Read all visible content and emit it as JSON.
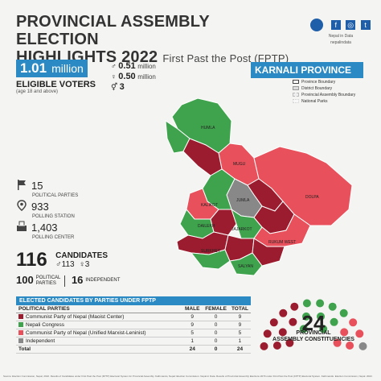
{
  "header": {
    "line1": "PROVINCIAL ASSEMBLY ELECTION",
    "line2": "HIGHLIGHTS 2022",
    "subtitle": "First Past the Post (FPTP)"
  },
  "brand": {
    "name": "Nepal in Data",
    "handle": "nepalindata"
  },
  "voters": {
    "value": "1.01",
    "unit": "million",
    "label": "ELIGIBLE VOTERS",
    "note": "(age 18 and above)",
    "male": "0.51",
    "female": "0.50",
    "other": "3",
    "male_unit": "million",
    "female_unit": "million"
  },
  "stats": [
    {
      "num": "15",
      "cap": "POLITICAL PARTIES",
      "icon": "flag-icon"
    },
    {
      "num": "933",
      "cap": "POLLING STATION",
      "icon": "location-pin-icon"
    },
    {
      "num": "1,403",
      "cap": "POLLING CENTER",
      "icon": "ballot-box-icon"
    }
  ],
  "candidates": {
    "total": "116",
    "label": "CANDIDATES",
    "male": "113",
    "female": "3",
    "parties_n": "100",
    "parties_label": "POLITICAL PARTIES",
    "indep_n": "16",
    "indep_label": "INDEPENDENT"
  },
  "province": {
    "name": "KARNALI PROVINCE",
    "legend": [
      {
        "label": "Province Boundary",
        "color": "#ffffff"
      },
      {
        "label": "District Boundary",
        "color": "#dddddd"
      },
      {
        "label": "Provincial Assembly Boundary",
        "color": "#eeeeee"
      },
      {
        "label": "National Parks",
        "color": "#f7f7f7"
      }
    ],
    "districts": [
      "HUMLA",
      "MUGU",
      "JUMLA",
      "KALIKOT",
      "DOLPA",
      "DAILEKH",
      "JAJARKOT",
      "SURKHET",
      "RUKUM WEST",
      "SALYAN"
    ]
  },
  "table": {
    "heading": "ELECTED CANDIDATES BY PARTIES UNDER FPTP",
    "cols": [
      "POLITICAL PARTIES",
      "MALE",
      "FEMALE",
      "TOTAL"
    ],
    "rows": [
      {
        "party": "Communist Party of Nepal (Maoist Center)",
        "male": "9",
        "female": "0",
        "total": "9",
        "color": "#9b1c2e"
      },
      {
        "party": "Nepali Congress",
        "male": "9",
        "female": "0",
        "total": "9",
        "color": "#3fa34d"
      },
      {
        "party": "Communist Party of Nepal (Unified Marxist-Leninist)",
        "male": "5",
        "female": "0",
        "total": "5",
        "color": "#e8505b"
      },
      {
        "party": "Independent",
        "male": "1",
        "female": "0",
        "total": "1",
        "color": "#888888"
      },
      {
        "party": "Total",
        "male": "24",
        "female": "0",
        "total": "24",
        "color": ""
      }
    ]
  },
  "parliament": {
    "seats": "24",
    "label1": "PROVINCIAL",
    "label2": "ASSEMBLY CONSTITUENCIES"
  },
  "source": "Source: Election Commission, Nepal, 2022. Results of Candidates under First Past the Post (FPTP) Electoral System for Provincial Assembly. Kathmandu, Nepal: Election Commission. Nepal in Data. Results of Provincial Assembly Elections 2079 under First Past the Post (FPTP) Electoral System. Kathmandu: Election Commission, Nepal. 2022."
}
